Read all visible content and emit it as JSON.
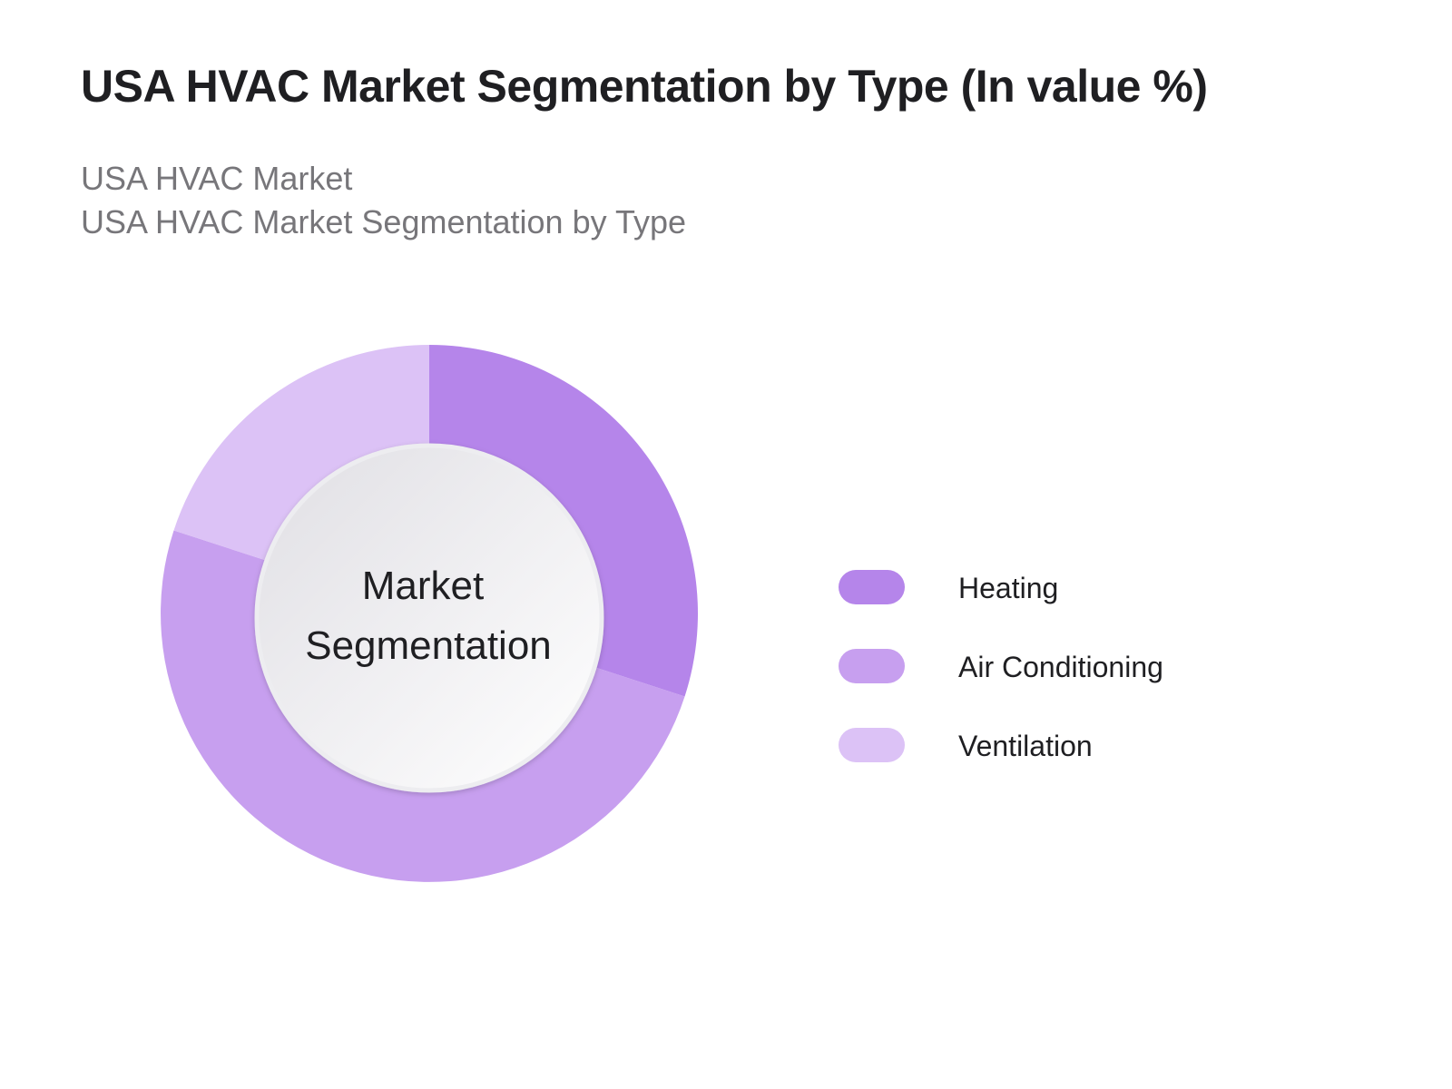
{
  "header": {
    "title": "USA HVAC Market Segmentation by Type (In value %)",
    "subtitle_line1": "USA HVAC Market",
    "subtitle_line2": "USA HVAC Market Segmentation by Type"
  },
  "chart_data": {
    "type": "pie",
    "variant": "donut",
    "center_label_line1": "Market",
    "center_label_line2": "Segmentation",
    "categories": [
      "Heating",
      "Air Conditioning",
      "Ventilation"
    ],
    "values": [
      30,
      50,
      20
    ],
    "colors": [
      "#b585ea",
      "#c79fef",
      "#dcc2f6"
    ],
    "legend_position": "right",
    "start_angle_deg": 0,
    "direction": "clockwise"
  },
  "legend": {
    "items": [
      {
        "label": "Heating",
        "color": "#b585ea"
      },
      {
        "label": "Air Conditioning",
        "color": "#c79fef"
      },
      {
        "label": "Ventilation",
        "color": "#dcc2f6"
      }
    ]
  }
}
